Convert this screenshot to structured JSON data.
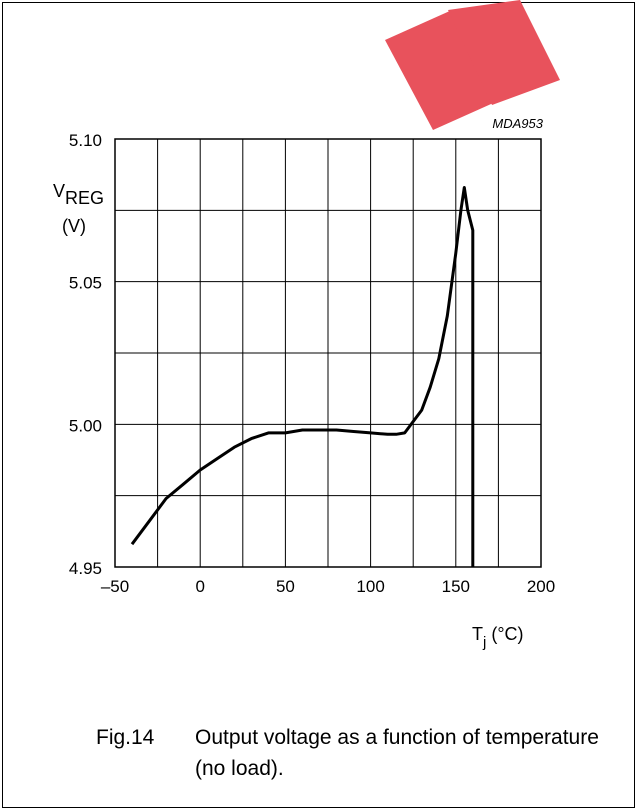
{
  "watermark": {
    "color": "#e8525c"
  },
  "chart_data": {
    "type": "line",
    "code": "MDA953",
    "ylabel": {
      "main": "V",
      "sub": "REG",
      "unit": "(V)"
    },
    "xlabel": {
      "main": "T",
      "sub": "j",
      "unit": " (°C)"
    },
    "xlim": [
      -50,
      200
    ],
    "ylim": [
      4.95,
      5.1
    ],
    "x_ticks": [
      -50,
      0,
      50,
      100,
      150,
      200
    ],
    "x_tick_labels": [
      "–50",
      "0",
      "50",
      "100",
      "150",
      "200"
    ],
    "x_gridlines": [
      -25,
      0,
      25,
      50,
      75,
      100,
      125,
      150,
      175
    ],
    "y_ticks": [
      4.95,
      5.0,
      5.05,
      5.1
    ],
    "y_tick_labels": [
      "4.95",
      "5.00",
      "5.05",
      "5.10"
    ],
    "y_gridlines": [
      4.975,
      5.0,
      5.025,
      5.05,
      5.075
    ],
    "grid": true,
    "series": [
      {
        "x": [
          -40,
          -30,
          -20,
          -10,
          0,
          10,
          20,
          30,
          40,
          50,
          60,
          70,
          80,
          90,
          100,
          110,
          115,
          120,
          125,
          130,
          135,
          140,
          145,
          150,
          153,
          155,
          157,
          160,
          160
        ],
        "y": [
          4.958,
          4.966,
          4.974,
          4.979,
          4.984,
          4.988,
          4.992,
          4.995,
          4.997,
          4.997,
          4.998,
          4.998,
          4.998,
          4.9975,
          4.997,
          4.9965,
          4.9965,
          4.997,
          5.001,
          5.005,
          5.013,
          5.023,
          5.038,
          5.06,
          5.075,
          5.083,
          5.075,
          5.068,
          4.95
        ]
      }
    ]
  },
  "caption": {
    "number": "Fig.14",
    "text": "Output voltage as a function of temperature (no load)."
  }
}
